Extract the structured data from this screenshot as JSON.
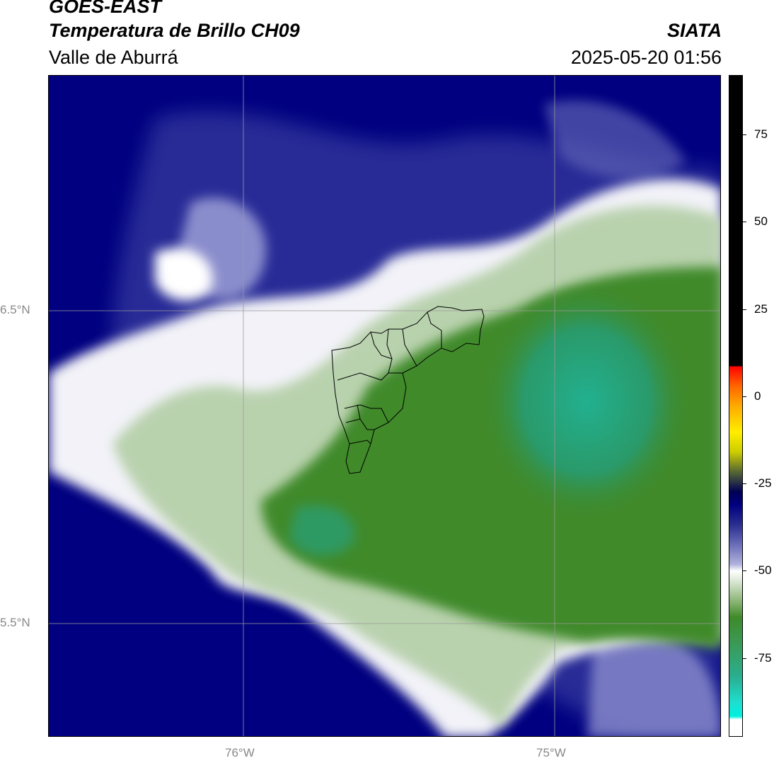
{
  "header": {
    "title_line1": "GOES-EAST",
    "title_line2": "Temperatura de Brillo CH09",
    "source": "SIATA",
    "region": "Valle de Aburrá",
    "datetime": "2025-05-20 01:56"
  },
  "map": {
    "lat_labels": [
      "6.5°N",
      "5.5°N"
    ],
    "lon_labels": [
      "76°W",
      "75°W"
    ],
    "colors": {
      "deep_blue": "#000080",
      "white": "#ffffff",
      "green": "#3f8a2a",
      "teal": "#22b08f"
    }
  },
  "colorbar": {
    "tick_labels": [
      "75",
      "50",
      "25",
      "0",
      "-25",
      "-50",
      "-75"
    ]
  }
}
